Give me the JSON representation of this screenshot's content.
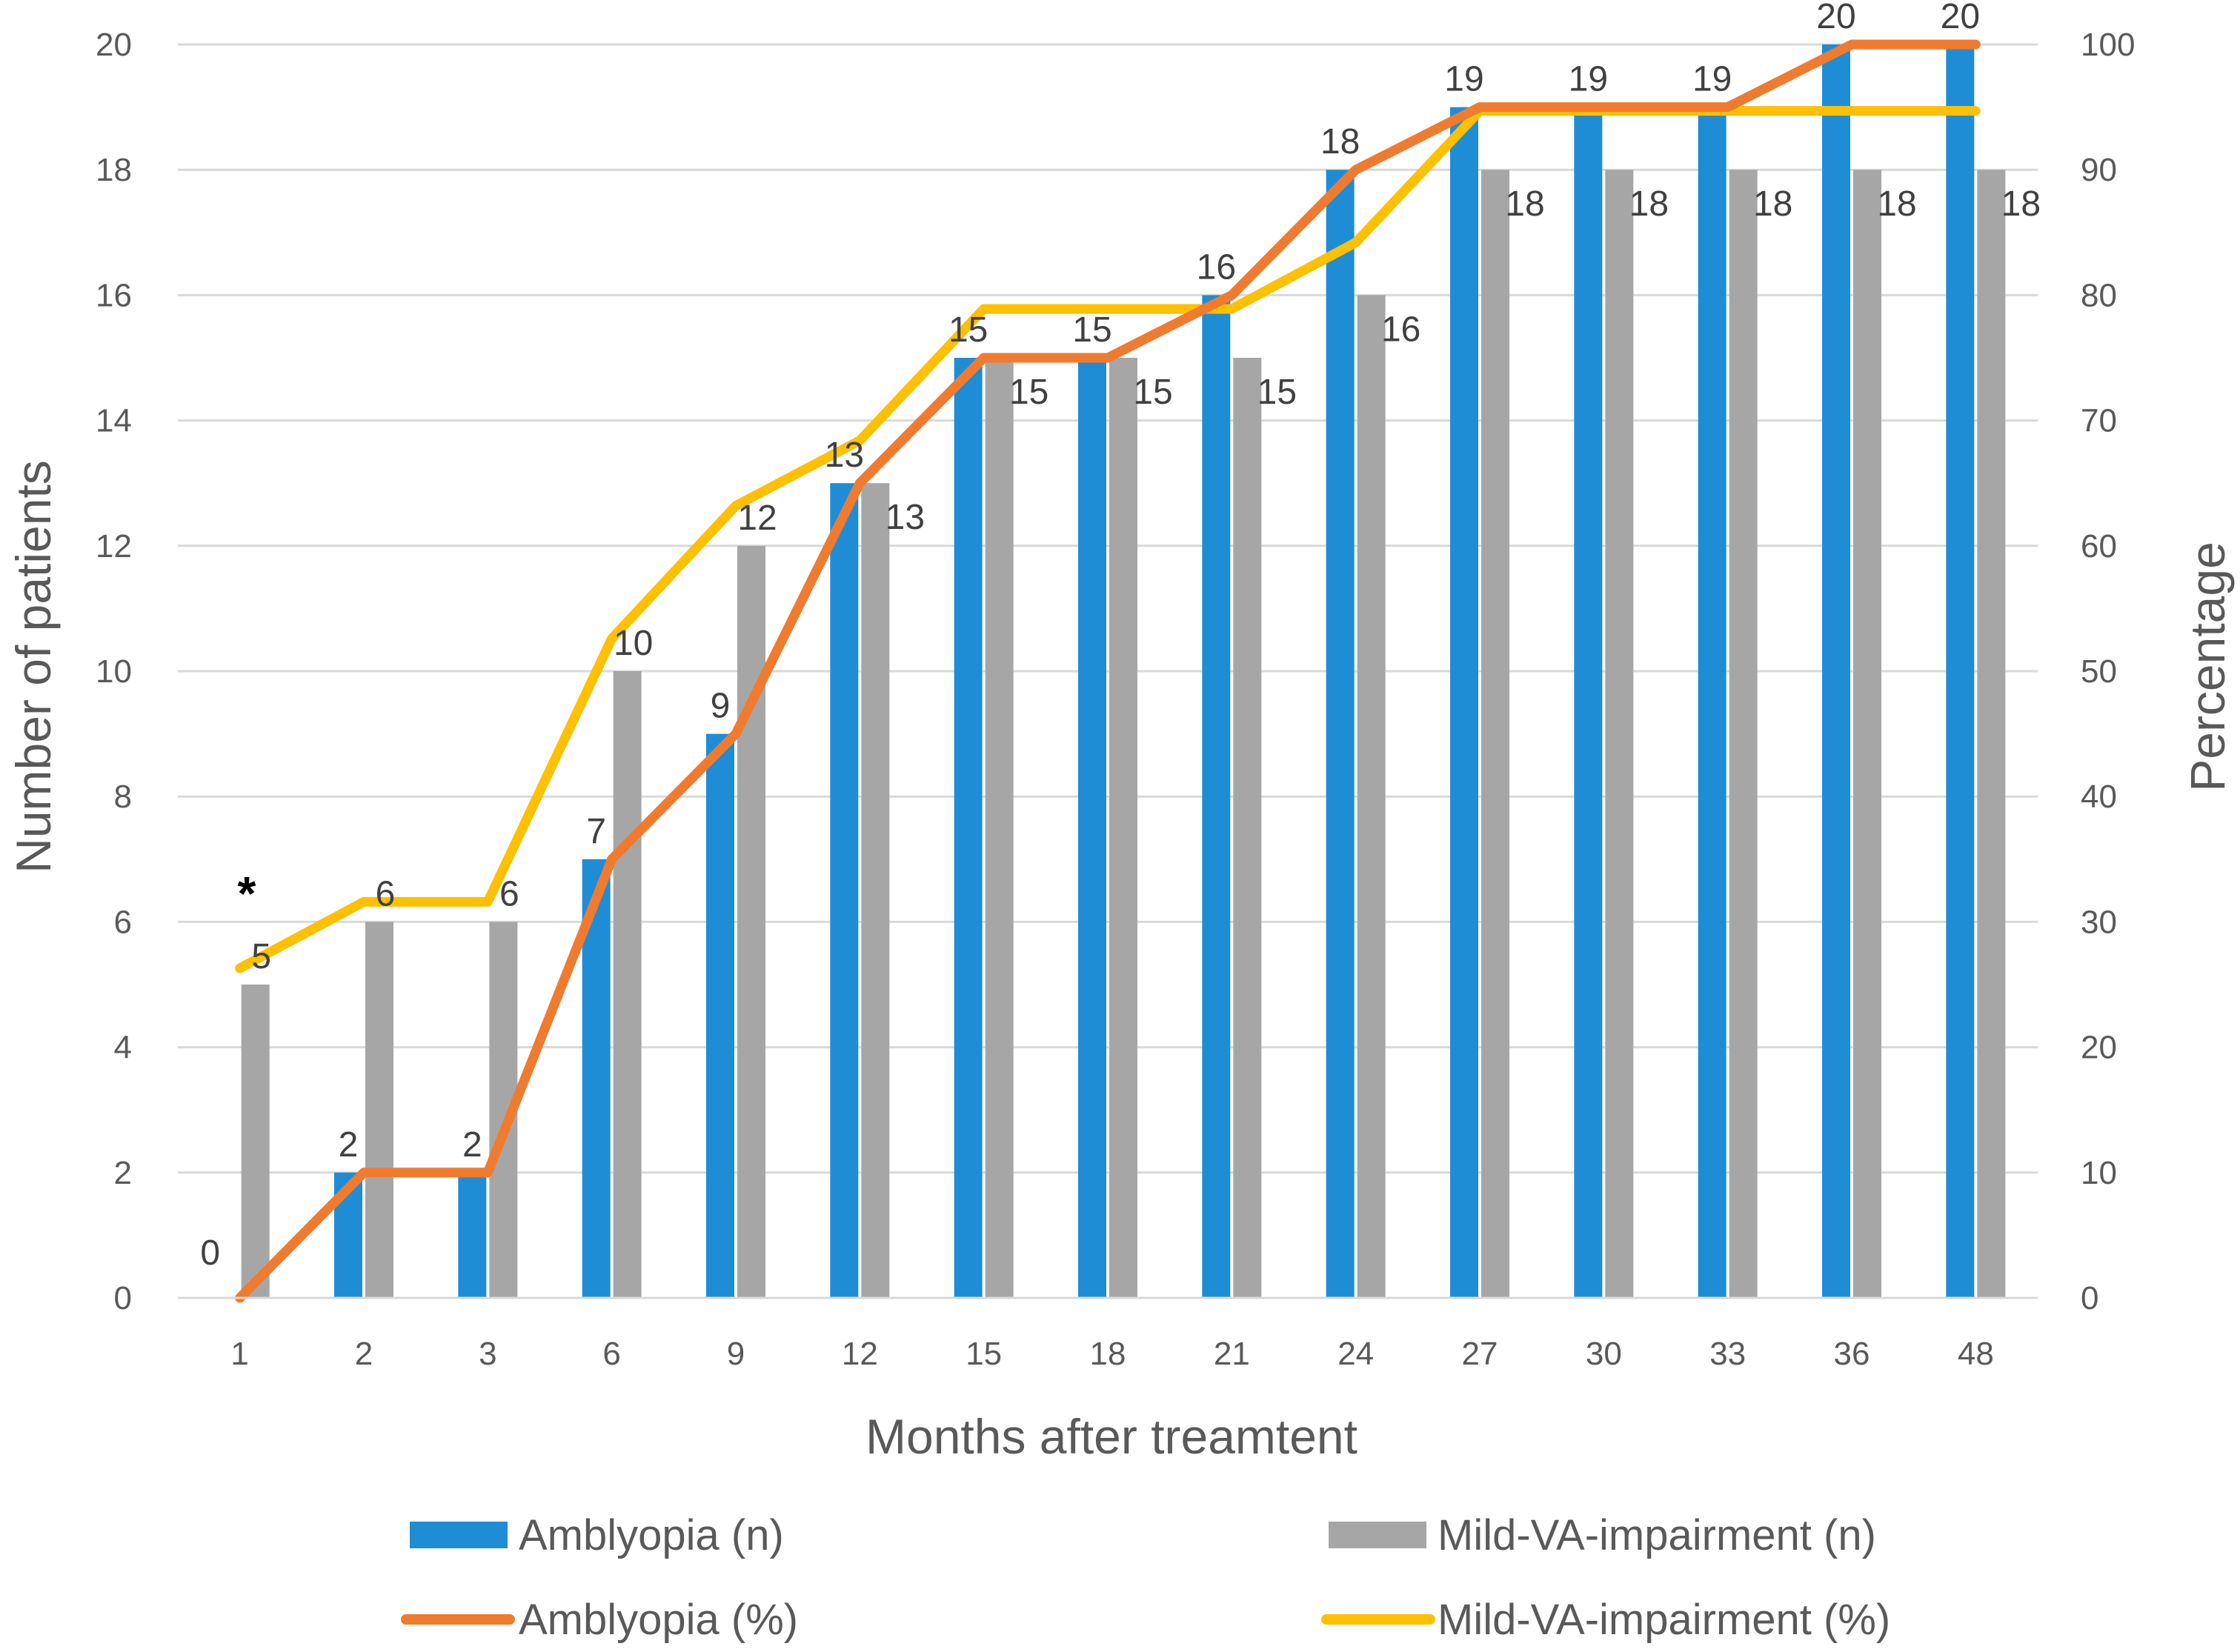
{
  "chart_data": {
    "type": "bar",
    "categories": [
      "1",
      "2",
      "3",
      "6",
      "9",
      "12",
      "15",
      "18",
      "21",
      "24",
      "27",
      "30",
      "33",
      "36",
      "48"
    ],
    "series": [
      {
        "name": "Amblyopia  (n)",
        "kind": "bar",
        "axis": "left",
        "color": "#1F8DD6",
        "values": [
          0,
          2,
          2,
          7,
          9,
          13,
          15,
          15,
          16,
          18,
          19,
          19,
          19,
          20,
          20
        ]
      },
      {
        "name": "Mild-VA-impairment (n)",
        "kind": "bar",
        "axis": "left",
        "color": "#A6A6A6",
        "values": [
          5,
          6,
          6,
          10,
          12,
          13,
          15,
          15,
          15,
          16,
          18,
          18,
          18,
          18,
          18
        ]
      },
      {
        "name": "Amblyopia  (%)",
        "kind": "line",
        "axis": "right",
        "color": "#F07B2F",
        "values": [
          0,
          10,
          10,
          35,
          45,
          65,
          75,
          75,
          80,
          90,
          95,
          95,
          95,
          100,
          100
        ]
      },
      {
        "name": "Mild-VA-impairment (%)",
        "kind": "line",
        "axis": "right",
        "color": "#FFC000",
        "values": [
          26.3,
          31.6,
          31.6,
          52.6,
          63.2,
          68.4,
          78.9,
          78.9,
          78.9,
          84.2,
          94.7,
          94.7,
          94.7,
          94.7,
          94.7
        ]
      }
    ],
    "title": "",
    "xlabel": "Months after treamtent",
    "ylabel": "Number of patients",
    "y2label": "Percentage",
    "ylim": [
      0,
      20
    ],
    "y2lim": [
      0,
      100
    ],
    "yticks": [
      "0",
      "2",
      "4",
      "6",
      "8",
      "10",
      "12",
      "14",
      "16",
      "18",
      "20"
    ],
    "y2ticks": [
      "0",
      "10",
      "20",
      "30",
      "40",
      "50",
      "60",
      "70",
      "80",
      "90",
      "100"
    ],
    "annotation": "*",
    "grid": true,
    "legend": "bottom"
  }
}
